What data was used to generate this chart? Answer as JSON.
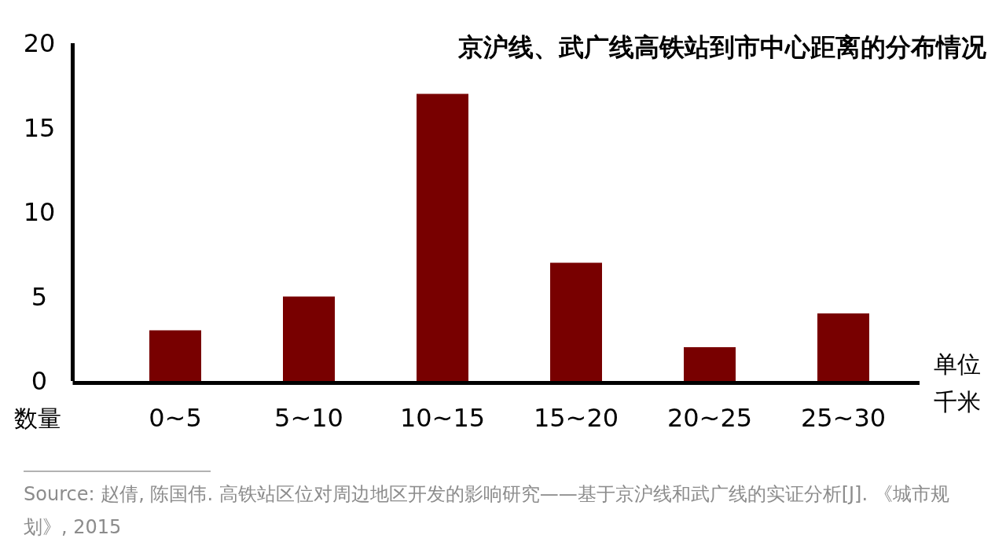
{
  "chart_data": {
    "type": "bar",
    "title": "京沪线、武广线高铁站到市中心距离的分布情况",
    "categories": [
      "0~5",
      "5~10",
      "10~15",
      "15~20",
      "20~25",
      "25~30"
    ],
    "values": [
      3,
      5,
      17,
      7,
      2,
      4
    ],
    "color": "#780000",
    "ylim": [
      0,
      20
    ],
    "yticks": [
      0,
      5,
      10,
      15,
      20
    ],
    "xlabel": "单位千米",
    "ylabel": "数量",
    "annotations": [
      "Source: 赵倩, 陈国伟. 高铁站区位对周边地区开发的影响研究——基于京沪线和武广线的实证分析[J]. 《城市规划》, 2015"
    ]
  }
}
